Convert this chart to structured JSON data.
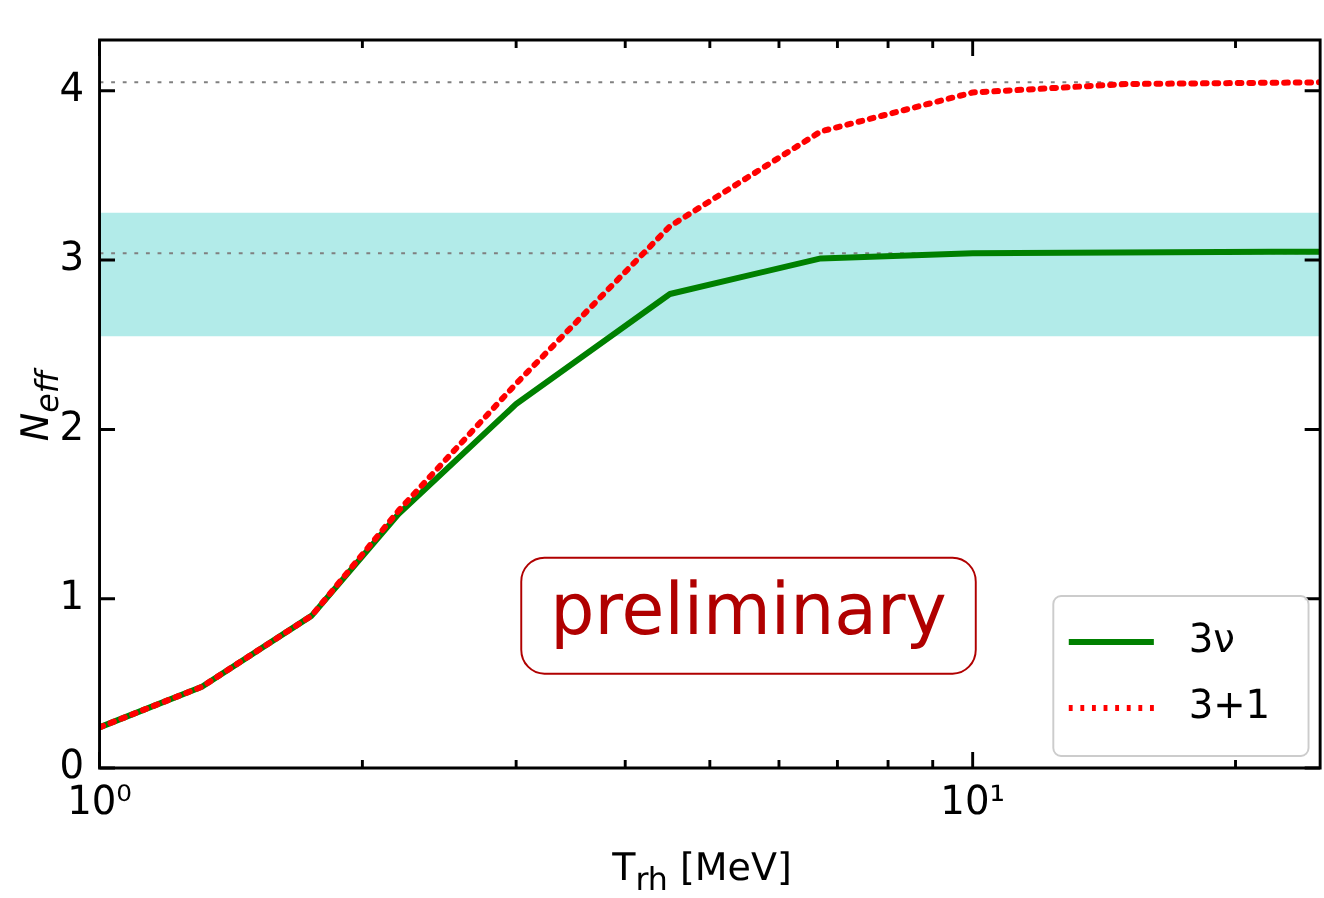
{
  "chart_data": {
    "type": "line",
    "xlabel": "T$_{rh}$ [MeV]",
    "ylabel": "N$_{eff}$",
    "log": "x",
    "xlim": [
      1,
      25
    ],
    "ylim": [
      0,
      4.3
    ],
    "xticks": [
      {
        "value": 1,
        "label": "10⁰"
      },
      {
        "value": 2,
        "label": null
      },
      {
        "value": 3,
        "label": null
      },
      {
        "value": 4,
        "label": null
      },
      {
        "value": 5,
        "label": null
      },
      {
        "value": 6,
        "label": null
      },
      {
        "value": 7,
        "label": null
      },
      {
        "value": 8,
        "label": null
      },
      {
        "value": 9,
        "label": null
      },
      {
        "value": 10,
        "label": "10¹"
      },
      {
        "value": 20,
        "label": null
      }
    ],
    "yticks": [
      0,
      1,
      2,
      3,
      4
    ],
    "series": [
      {
        "name": "3ν",
        "color": "#008000",
        "line_style": "solid",
        "x": [
          1,
          1.31,
          1.75,
          2.2,
          3,
          4.5,
          6.7,
          10,
          25
        ],
        "values": [
          0.24,
          0.48,
          0.9,
          1.5,
          2.15,
          2.8,
          3.01,
          3.04,
          3.05
        ]
      },
      {
        "name": "3+1",
        "color": "#ff0000",
        "line_style": "dotted",
        "x": [
          1,
          1.31,
          1.75,
          2.2,
          3,
          4.5,
          6.7,
          10,
          15,
          25
        ],
        "values": [
          0.24,
          0.48,
          0.9,
          1.52,
          2.27,
          3.2,
          3.76,
          3.99,
          4.04,
          4.05
        ]
      }
    ],
    "ref_lines": [
      {
        "axis": "y",
        "value": 3.04,
        "color": "#808080",
        "line_style": "dotted"
      },
      {
        "axis": "y",
        "value": 4.05,
        "color": "#808080",
        "line_style": "dotted"
      }
    ],
    "bands": [
      {
        "axis": "y",
        "from": 2.55,
        "to": 3.28,
        "color": "#b2ebe9"
      }
    ],
    "annotations": [
      "preliminary"
    ],
    "legend": "bottom right",
    "marker": "none"
  }
}
